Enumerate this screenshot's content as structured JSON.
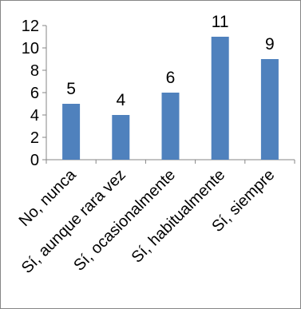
{
  "chart_data": {
    "type": "bar",
    "categories": [
      "No, nunca",
      "Sí, aunque rara vez",
      "Sí, ocasionalmente",
      "Sí, habitualmente",
      "Sí, siempre"
    ],
    "values": [
      5,
      4,
      6,
      11,
      9
    ],
    "ylim": [
      0,
      12
    ],
    "yticks": [
      "0",
      "2",
      "4",
      "6",
      "8",
      "10",
      "12"
    ],
    "data_labels": [
      "5",
      "4",
      "6",
      "11",
      "9"
    ],
    "grid": false,
    "legend": "none",
    "title": "",
    "xlabel": "",
    "ylabel": "",
    "bar_color": "#4f81bd"
  }
}
